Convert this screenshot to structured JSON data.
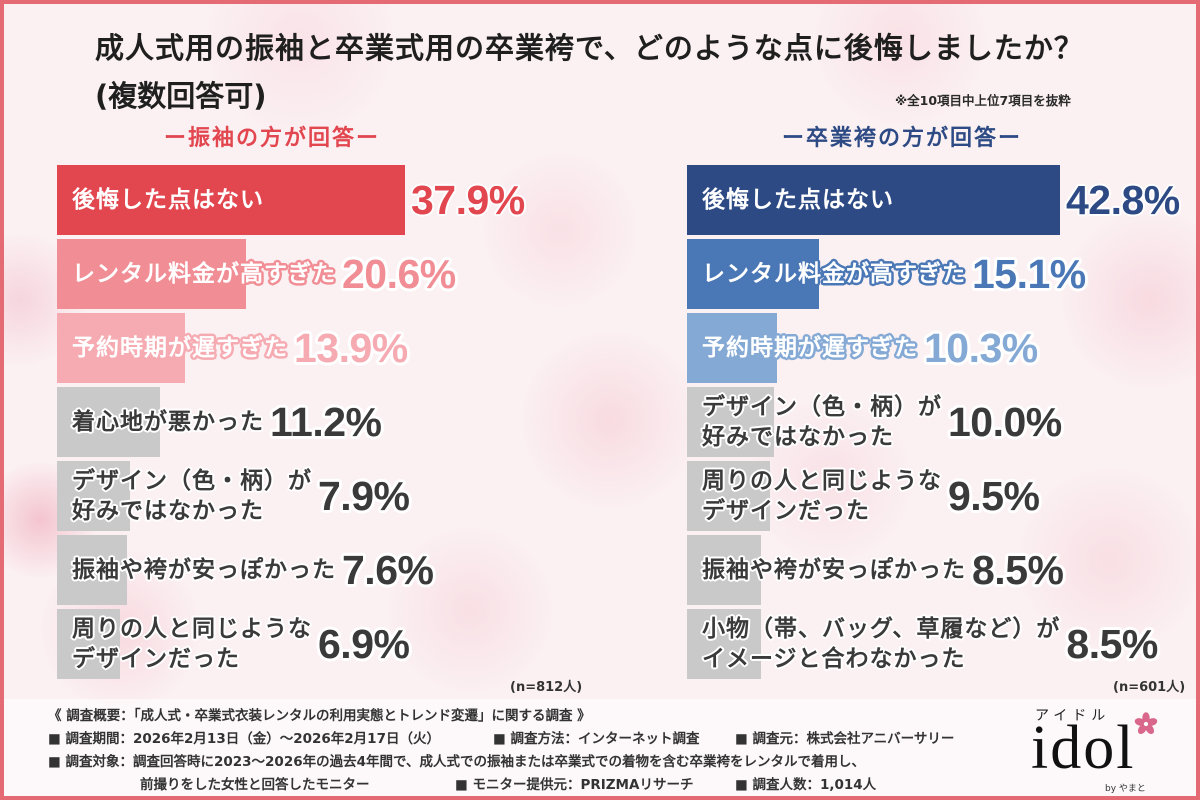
{
  "header": {
    "title": "成人式用の振袖と卒業式用の卒業袴で、どのような点に後悔しましたか？",
    "subtitle": "(複数回答可)",
    "note": "※全10項目中上位7項目を抜粋"
  },
  "chart_data": [
    {
      "type": "bar",
      "orientation": "horizontal",
      "title": "ー振袖の方が回答ー",
      "categories": [
        "後悔した点はない",
        "レンタル料金が高すぎた",
        "予約時期が遅すぎた",
        "着心地が悪かった",
        "デザイン（色・柄）が\n好みではなかった",
        "振袖や袴が安っぽかった",
        "周りの人と同じような\nデザインだった"
      ],
      "values": [
        37.9,
        20.6,
        13.9,
        11.2,
        7.9,
        7.6,
        6.9
      ],
      "value_labels": [
        "37.9%",
        "20.6%",
        "13.9%",
        "11.2%",
        "7.9%",
        "7.6%",
        "6.9%"
      ],
      "colors": [
        "#e2464f",
        "#f18e95",
        "#f5abb1",
        "#c9c9c9",
        "#c9c9c9",
        "#c9c9c9",
        "#c9c9c9"
      ],
      "sample_label": "(n=812人)",
      "grid": false
    },
    {
      "type": "bar",
      "orientation": "horizontal",
      "title": "ー卒業袴の方が回答ー",
      "categories": [
        "後悔した点はない",
        "レンタル料金が高すぎた",
        "予約時期が遅すぎた",
        "デザイン（色・柄）が\n好みではなかった",
        "周りの人と同じような\nデザインだった",
        "振袖や袴が安っぽかった",
        "小物（帯、バッグ、草履など）が\nイメージと合わなかった"
      ],
      "values": [
        42.8,
        15.1,
        10.3,
        10.0,
        9.5,
        8.5,
        8.5
      ],
      "value_labels": [
        "42.8%",
        "15.1%",
        "10.3%",
        "10.0%",
        "9.5%",
        "8.5%",
        "8.5%"
      ],
      "colors": [
        "#2d4a84",
        "#4a77b5",
        "#84a9d4",
        "#c9c9c9",
        "#c9c9c9",
        "#c9c9c9",
        "#c9c9c9"
      ],
      "sample_label": "(n=601人)",
      "grid": false
    }
  ],
  "survey": {
    "heading": "《 調査概要：「成人式・卒業式衣装レンタルの利用実態とトレンド変遷」に関する調査 》",
    "period": "■ 調査期間：2026年2月13日（金）～2026年2月17日（火）",
    "method": "■ 調査方法：インターネット調査",
    "source": "■ 調査元：株式会社アニバーサリー",
    "target_line1": "■ 調査対象：調査回答時に2023～2026年の過去4年間で、成人式での振袖または卒業式での着物を含む卒業袴をレンタルで着用し、",
    "target_line2": "前撮りをした女性と回答したモニター",
    "panel": "■ モニター提供元：PRIZMAリサーチ",
    "respondents": "■ 調査人数：1,014人"
  },
  "logo": {
    "kana": "アイドル",
    "wordmark": "idol",
    "byline": "by やまと",
    "icon": "cherry-blossom-icon"
  },
  "theme": {
    "frame": "#e46a73",
    "background": "#fbf1f3"
  }
}
